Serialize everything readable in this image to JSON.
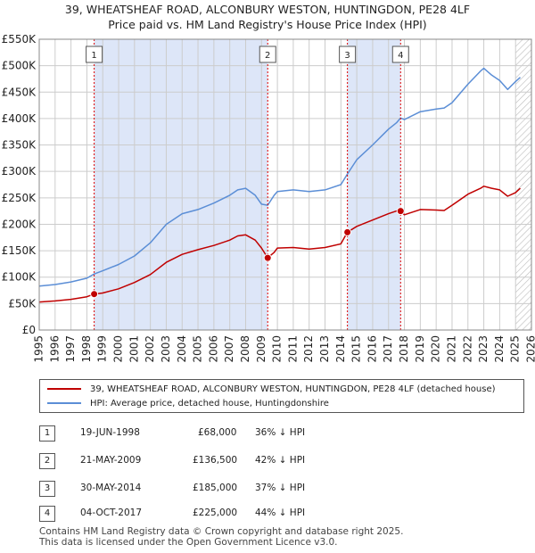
{
  "title_line1": "39, WHEATSHEAF ROAD, ALCONBURY WESTON, HUNTINGDON, PE28 4LF",
  "title_line2": "Price paid vs. HM Land Registry's House Price Index (HPI)",
  "colors": {
    "hpi": "#5b8ed6",
    "price": "#c00000",
    "band": "#dde6f8",
    "grid": "#cccccc"
  },
  "legend": [
    {
      "label": "39, WHEATSHEAF ROAD, ALCONBURY WESTON, HUNTINGDON, PE28 4LF (detached house)",
      "color": "#c00000"
    },
    {
      "label": "HPI: Average price, detached house, Huntingdonshire",
      "color": "#5b8ed6"
    }
  ],
  "transactions": [
    {
      "num": "1",
      "date": "19-JUN-1998",
      "price": "£68,000",
      "hpi": "36% ↓ HPI"
    },
    {
      "num": "2",
      "date": "21-MAY-2009",
      "price": "£136,500",
      "hpi": "42% ↓ HPI"
    },
    {
      "num": "3",
      "date": "30-MAY-2014",
      "price": "£185,000",
      "hpi": "37% ↓ HPI"
    },
    {
      "num": "4",
      "date": "04-OCT-2017",
      "price": "£225,000",
      "hpi": "44% ↓ HPI"
    }
  ],
  "footer_line1": "Contains HM Land Registry data © Crown copyright and database right 2025.",
  "footer_line2": "This data is licensed under the Open Government Licence v3.0.",
  "chart_data": {
    "type": "line",
    "xlim": [
      1995,
      2026
    ],
    "ylim": [
      0,
      550000
    ],
    "y_ticks": [
      0,
      50000,
      100000,
      150000,
      200000,
      250000,
      300000,
      350000,
      400000,
      450000,
      500000,
      550000
    ],
    "y_tick_labels": [
      "£0",
      "£50K",
      "£100K",
      "£150K",
      "£200K",
      "£250K",
      "£300K",
      "£350K",
      "£400K",
      "£450K",
      "£500K",
      "£550K"
    ],
    "x_ticks": [
      1995,
      1996,
      1997,
      1998,
      1999,
      2000,
      2001,
      2002,
      2003,
      2004,
      2005,
      2006,
      2007,
      2008,
      2009,
      2010,
      2011,
      2012,
      2013,
      2014,
      2015,
      2016,
      2017,
      2018,
      2019,
      2020,
      2021,
      2022,
      2023,
      2024,
      2025,
      2026
    ],
    "grid": true,
    "shaded_periods": [
      [
        1998.46,
        2009.39
      ],
      [
        2014.41,
        2017.76
      ]
    ],
    "hatched_from": 2025.0,
    "series": [
      {
        "name": "39, WHEATSHEAF ROAD, ALCONBURY WESTON, HUNTINGDON, PE28 4LF (detached house)",
        "color": "#c00000",
        "x": [
          1995.0,
          1996.0,
          1997.0,
          1998.0,
          1998.46,
          1999.0,
          2000.0,
          2001.0,
          2002.0,
          2003.0,
          2004.0,
          2005.0,
          2006.0,
          2007.0,
          2007.5,
          2008.0,
          2008.6,
          2009.0,
          2009.39,
          2009.8,
          2010.0,
          2011.0,
          2012.0,
          2013.0,
          2014.0,
          2014.41,
          2015.0,
          2016.0,
          2017.0,
          2017.5,
          2017.76,
          2018.0,
          2019.0,
          2020.0,
          2020.5,
          2021.0,
          2022.0,
          2022.8,
          2023.0,
          2023.5,
          2024.0,
          2024.5,
          2025.0,
          2025.3
        ],
        "y": [
          53000,
          55000,
          58000,
          63000,
          68000,
          70000,
          78000,
          90000,
          105000,
          128000,
          143000,
          152000,
          160000,
          170000,
          178000,
          180000,
          170000,
          155000,
          136500,
          147000,
          155000,
          156000,
          153000,
          156000,
          163000,
          185000,
          196000,
          208000,
          220000,
          225000,
          225000,
          218000,
          228000,
          227000,
          226000,
          236000,
          257000,
          268000,
          272000,
          268000,
          265000,
          253000,
          260000,
          268000
        ]
      },
      {
        "name": "HPI: Average price, detached house, Huntingdonshire",
        "color": "#5b8ed6",
        "x": [
          1995.0,
          1996.0,
          1997.0,
          1998.0,
          1998.46,
          1999.0,
          2000.0,
          2001.0,
          2002.0,
          2003.0,
          2004.0,
          2005.0,
          2006.0,
          2007.0,
          2007.5,
          2008.0,
          2008.6,
          2009.0,
          2009.39,
          2009.8,
          2010.0,
          2011.0,
          2012.0,
          2013.0,
          2014.0,
          2014.41,
          2015.0,
          2016.0,
          2017.0,
          2017.5,
          2017.76,
          2018.0,
          2019.0,
          2020.0,
          2020.5,
          2021.0,
          2022.0,
          2022.8,
          2023.0,
          2023.5,
          2024.0,
          2024.5,
          2025.0,
          2025.3
        ],
        "y": [
          83000,
          86000,
          91000,
          98000,
          106000,
          112000,
          124000,
          140000,
          165000,
          200000,
          220000,
          228000,
          240000,
          255000,
          265000,
          268000,
          255000,
          238000,
          236000,
          255000,
          262000,
          265000,
          262000,
          265000,
          275000,
          295000,
          322000,
          350000,
          380000,
          392000,
          401000,
          398000,
          413000,
          418000,
          420000,
          430000,
          465000,
          490000,
          495000,
          482000,
          472000,
          455000,
          470000,
          478000
        ]
      }
    ],
    "markers": [
      {
        "label": "1",
        "x": 1998.46,
        "y": 68000
      },
      {
        "label": "2",
        "x": 2009.39,
        "y": 136500
      },
      {
        "label": "3",
        "x": 2014.41,
        "y": 185000
      },
      {
        "label": "4",
        "x": 2017.76,
        "y": 225000
      }
    ]
  }
}
